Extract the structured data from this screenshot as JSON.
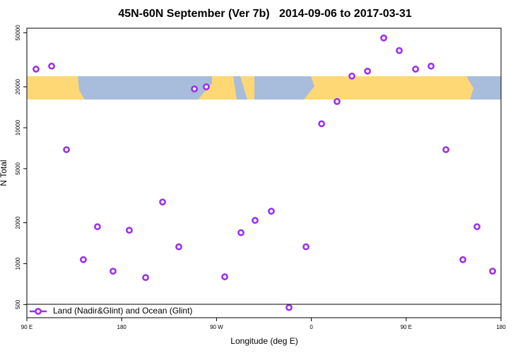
{
  "chart_data": {
    "type": "scatter",
    "title": "45N-60N September (Ver 7b)   2014-09-06 to 2017-03-31",
    "xlabel": "Longitude (deg E)",
    "ylabel": "N Total",
    "xlim": [
      90,
      540
    ],
    "xticks": [
      {
        "value": 90,
        "label": "90 E"
      },
      {
        "value": 180,
        "label": "180"
      },
      {
        "value": 270,
        "label": "90 W"
      },
      {
        "value": 360,
        "label": "0"
      },
      {
        "value": 450,
        "label": "90 E"
      },
      {
        "value": 540,
        "label": "180"
      }
    ],
    "ylim": [
      400,
      54000
    ],
    "ylog": true,
    "yticks": [
      500,
      1000,
      2000,
      5000,
      10000,
      20000,
      50000
    ],
    "legend": "bottom-left",
    "series": [
      {
        "name": "Land (Nadir&Glint) and Ocean (Glint)",
        "color": "#9b30f0",
        "x": [
          98.7,
          113.5,
          127.6,
          143.6,
          157,
          171.8,
          187.2,
          202.7,
          218.8,
          234.2,
          249,
          260.3,
          277.8,
          293.2,
          306.6,
          322,
          338.8,
          354.9,
          369.7,
          384.4,
          398.5,
          413.3,
          428.7,
          443.4,
          458.9,
          473.6,
          487.7,
          503.8,
          517.2,
          532
        ],
        "values": [
          27000,
          28400,
          6900,
          1070,
          1870,
          880,
          1760,
          790,
          2840,
          1330,
          19300,
          20000,
          800,
          1690,
          2080,
          2430,
          475,
          1330,
          10700,
          15600,
          24000,
          26100,
          45800,
          37000,
          27000,
          28400,
          6900,
          1070,
          1870,
          880
        ]
      }
    ]
  }
}
